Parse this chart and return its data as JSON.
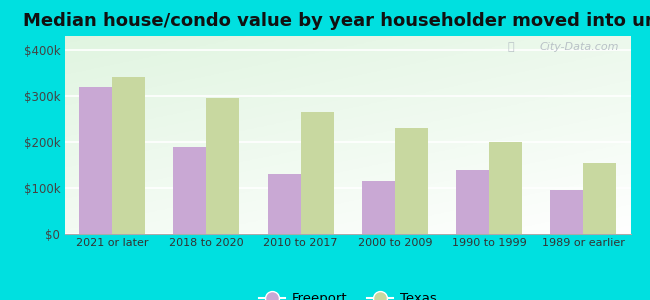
{
  "title": "Median house/condo value by year householder moved into unit",
  "categories": [
    "2021 or later",
    "2018 to 2020",
    "2010 to 2017",
    "2000 to 2009",
    "1990 to 1999",
    "1989 or earlier"
  ],
  "freeport_values": [
    320000,
    190000,
    130000,
    115000,
    140000,
    95000
  ],
  "texas_values": [
    340000,
    295000,
    265000,
    230000,
    200000,
    155000
  ],
  "freeport_color": "#c9a8d4",
  "texas_color": "#c8d8a0",
  "background_outer": "#00e0e0",
  "yticks": [
    0,
    100000,
    200000,
    300000,
    400000
  ],
  "ytick_labels": [
    "$0",
    "$100k",
    "$200k",
    "$300k",
    "$400k"
  ],
  "ylim": [
    0,
    430000
  ],
  "bar_width": 0.35,
  "title_fontsize": 13,
  "watermark": "City-Data.com"
}
